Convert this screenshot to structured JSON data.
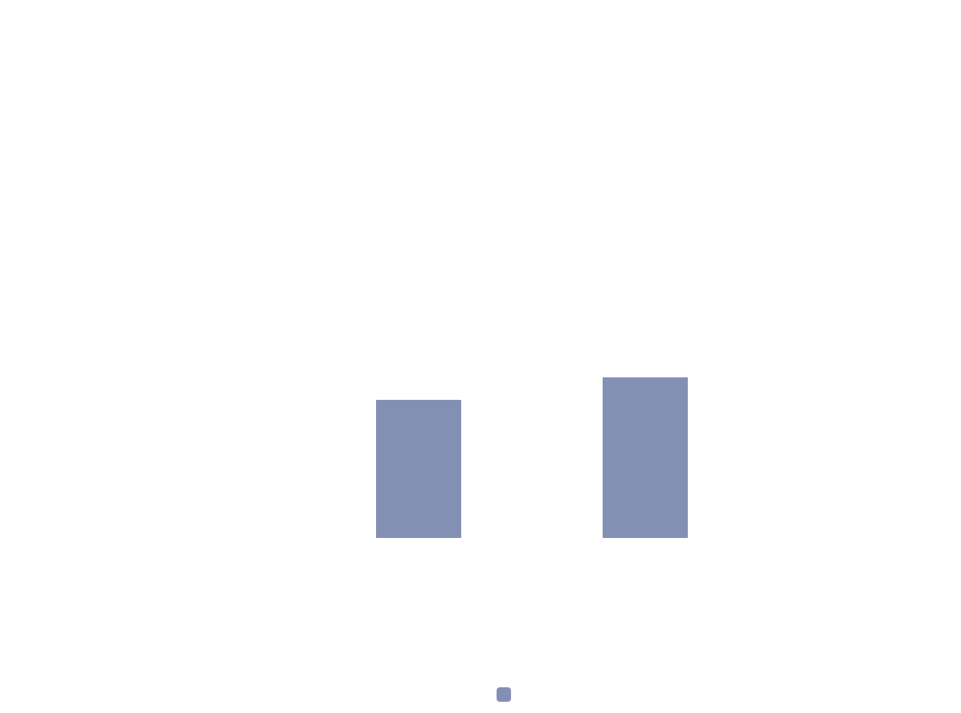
{
  "colors": {
    "background": "#ffffff",
    "bar": "#8390b4"
  },
  "chart_data": {
    "type": "bar",
    "categories": [
      "",
      ""
    ],
    "values": [
      0.86,
      1.0
    ],
    "ylim": [
      0,
      1.0
    ],
    "grid": false,
    "legend_placement": "bottom-center",
    "xlabel": "",
    "ylabel": ""
  }
}
